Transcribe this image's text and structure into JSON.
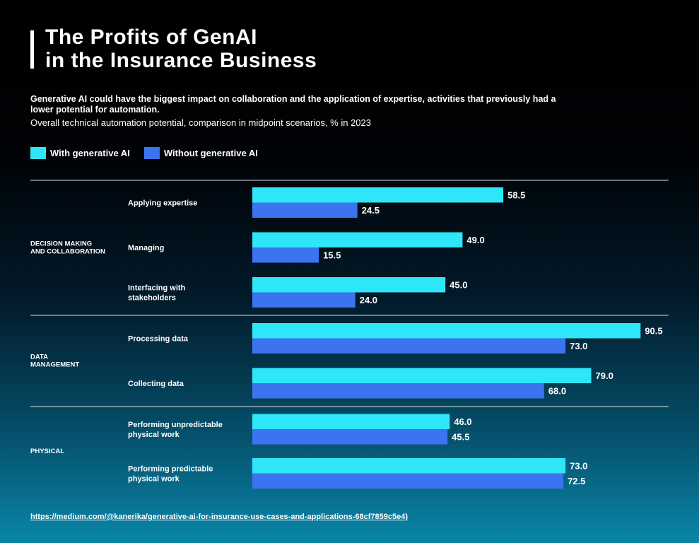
{
  "header": {
    "title_line1": "The Profits of GenAI",
    "title_line2": "in the Insurance Business"
  },
  "subtitle_bold": "Generative AI could have the biggest impact on collaboration and the application of expertise, activities that previously had a lower potential for automation.",
  "subtitle": "Overall technical automation potential, comparison in midpoint scenarios, % in 2023",
  "legend": {
    "with_label": "With generative AI",
    "without_label": "Without generative AI"
  },
  "colors": {
    "with": "#2ee6f8",
    "without": "#3c73f0"
  },
  "chart_data": {
    "type": "bar",
    "orientation": "horizontal",
    "title": "The Profits of GenAI in the Insurance Business",
    "xlim": [
      0,
      100
    ],
    "grid": false,
    "legend_position": "top-left",
    "groups": [
      {
        "label_line1": "DECISION MAKING",
        "label_line2": "AND COLLABORATION",
        "categories": [
          0,
          1,
          2
        ]
      },
      {
        "label_line1": "DATA",
        "label_line2": "MANAGEMENT",
        "categories": [
          3,
          4
        ]
      },
      {
        "label_line1": "PHYSICAL",
        "label_line2": "",
        "categories": [
          5,
          6
        ]
      }
    ],
    "categories": [
      [
        "Applying expertise"
      ],
      [
        "Managing"
      ],
      [
        "Interfacing with",
        "stakeholders"
      ],
      [
        "Processing data"
      ],
      [
        "Collecting data"
      ],
      [
        "Performing unpredictable",
        "physical work"
      ],
      [
        "Performing predictable",
        "physical work"
      ]
    ],
    "series": [
      {
        "name": "With generative AI",
        "values": [
          58.5,
          49.0,
          45.0,
          90.5,
          79.0,
          46.0,
          73.0
        ]
      },
      {
        "name": "Without generative AI",
        "values": [
          24.5,
          15.5,
          24.0,
          73.0,
          68.0,
          45.5,
          72.5
        ]
      }
    ]
  },
  "source_link": "https://medium.com/@kanerika/generative-ai-for-insurance-use-cases-and-applications-68cf7859c5e4)"
}
